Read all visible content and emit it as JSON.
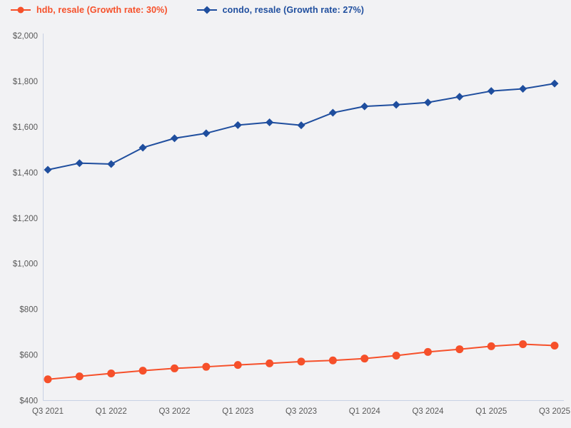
{
  "chart_data": {
    "type": "line",
    "x": [
      "Q3 2021",
      "Q4 2021",
      "Q1 2022",
      "Q2 2022",
      "Q3 2022",
      "Q4 2022",
      "Q1 2023",
      "Q2 2023",
      "Q3 2023",
      "Q4 2023",
      "Q1 2024",
      "Q2 2024",
      "Q3 2024",
      "Q4 2024",
      "Q1 2025",
      "Q2 2025",
      "Q3 2025"
    ],
    "series": [
      {
        "name": "hdb, resale",
        "legend_label": "hdb, resale (Growth rate: 30%)",
        "growth_rate": "30%",
        "color": "#f6502a",
        "marker": "circle",
        "values": [
          493,
          506,
          519,
          531,
          541,
          548,
          556,
          563,
          571,
          576,
          584,
          597,
          613,
          625,
          638,
          647,
          641
        ]
      },
      {
        "name": "condo, resale",
        "legend_label": "condo, resale (Growth rate: 27%)",
        "growth_rate": "27%",
        "color": "#1f4e9e",
        "marker": "diamond",
        "values": [
          1412,
          1441,
          1437,
          1509,
          1550,
          1572,
          1608,
          1620,
          1607,
          1662,
          1690,
          1697,
          1707,
          1732,
          1757,
          1767,
          1790
        ]
      }
    ],
    "ylim": [
      400,
      2000
    ],
    "yticks": [
      400,
      600,
      800,
      1000,
      1200,
      1400,
      1600,
      1800,
      2000
    ],
    "ytick_labels": [
      "$400",
      "$600",
      "$800",
      "$1,000",
      "$1,200",
      "$1,400",
      "$1,600",
      "$1,800",
      "$2,000"
    ],
    "xtick_every": 2,
    "grid": false,
    "legend_position": "top-left",
    "background_color": "#f2f2f4",
    "axis_color": "#c8d1e4",
    "tick_label_color": "#595959"
  }
}
